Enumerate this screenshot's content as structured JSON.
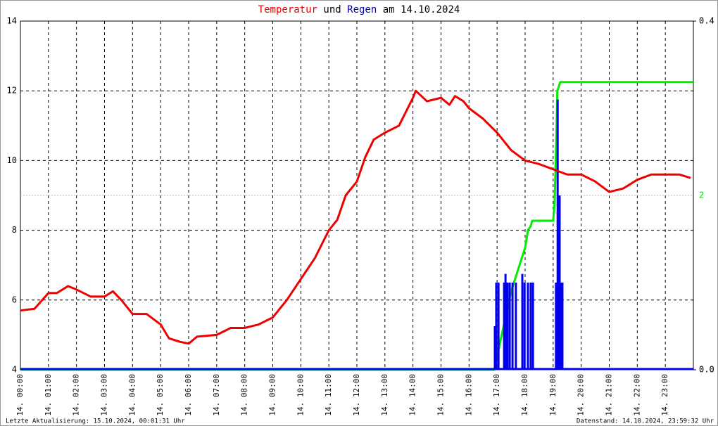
{
  "chart_data": {
    "type": "line",
    "title_connector": "und",
    "title_suffix": "am 14.10.2024",
    "footer_left": "Letzte Aktualisierung: 15.10.2024, 00:01:31 Uhr",
    "footer_right": "Datenstand: 14.10.2024, 23:59:32 Uhr",
    "xlim": [
      0,
      24
    ],
    "xticks": [
      {
        "value": 0,
        "label": "14. 00:00"
      },
      {
        "value": 1,
        "label": "14. 01:00"
      },
      {
        "value": 2,
        "label": "14. 02:00"
      },
      {
        "value": 3,
        "label": "14. 03:00"
      },
      {
        "value": 4,
        "label": "14. 04:00"
      },
      {
        "value": 5,
        "label": "14. 05:00"
      },
      {
        "value": 6,
        "label": "14. 06:00"
      },
      {
        "value": 7,
        "label": "14. 07:00"
      },
      {
        "value": 8,
        "label": "14. 08:00"
      },
      {
        "value": 9,
        "label": "14. 09:00"
      },
      {
        "value": 10,
        "label": "14. 10:00"
      },
      {
        "value": 11,
        "label": "14. 11:00"
      },
      {
        "value": 12,
        "label": "14. 12:00"
      },
      {
        "value": 13,
        "label": "14. 13:00"
      },
      {
        "value": 14,
        "label": "14. 14:00"
      },
      {
        "value": 15,
        "label": "14. 15:00"
      },
      {
        "value": 16,
        "label": "14. 16:00"
      },
      {
        "value": 17,
        "label": "14. 17:00"
      },
      {
        "value": 18,
        "label": "14. 18:00"
      },
      {
        "value": 19,
        "label": "14. 19:00"
      },
      {
        "value": 20,
        "label": "14. 20:00"
      },
      {
        "value": 21,
        "label": "14. 21:00"
      },
      {
        "value": 22,
        "label": "14. 22:00"
      },
      {
        "value": 23,
        "label": "14. 23:00"
      }
    ],
    "ylim": [
      4,
      14
    ],
    "yticks": [
      4,
      6,
      8,
      10,
      12,
      14
    ],
    "y2lim": [
      0,
      0.4
    ],
    "y2ticks": [
      {
        "value": 0,
        "label": "0.0"
      },
      {
        "value": 0.4,
        "label": "0.4"
      }
    ],
    "y3lim": [
      0,
      4
    ],
    "y3ticks": [
      2
    ],
    "y3color": "#00dd00",
    "grid": true,
    "series": [
      {
        "name": "Temperatur",
        "color": "#ee0000",
        "x": [
          0,
          0.5,
          1.0,
          1.3,
          1.7,
          2.0,
          2.5,
          3.0,
          3.3,
          3.6,
          4.0,
          4.5,
          5.0,
          5.3,
          5.7,
          6.0,
          6.3,
          7.0,
          7.5,
          8.0,
          8.5,
          9.0,
          9.5,
          10.0,
          10.5,
          11.0,
          11.3,
          11.6,
          12.0,
          12.3,
          12.6,
          13.0,
          13.5,
          14.0,
          14.1,
          14.5,
          15.0,
          15.3,
          15.5,
          15.8,
          16.0,
          16.5,
          17.0,
          17.5,
          18.0,
          18.5,
          19.0,
          19.5,
          20.0,
          20.5,
          21.0,
          21.5,
          22.0,
          22.5,
          23.0,
          23.5,
          23.9
        ],
        "values": [
          5.7,
          5.75,
          6.2,
          6.2,
          6.4,
          6.3,
          6.1,
          6.1,
          6.25,
          6.0,
          5.6,
          5.6,
          5.3,
          4.9,
          4.8,
          4.75,
          4.95,
          5.0,
          5.2,
          5.2,
          5.3,
          5.5,
          6.0,
          6.6,
          7.2,
          8.0,
          8.3,
          9.0,
          9.4,
          10.1,
          10.6,
          10.8,
          11.0,
          11.8,
          12.0,
          11.7,
          11.8,
          11.6,
          11.85,
          11.7,
          11.5,
          11.2,
          10.8,
          10.3,
          10.0,
          9.9,
          9.75,
          9.6,
          9.6,
          9.4,
          9.1,
          9.2,
          9.45,
          9.6,
          9.6,
          9.6,
          9.5
        ]
      },
      {
        "name": "Regen",
        "color": "#0000ee",
        "axis": "y2",
        "x": [
          16.92,
          16.97,
          17.05,
          17.25,
          17.3,
          17.37,
          17.45,
          17.55,
          17.67,
          17.9,
          17.98,
          18.1,
          18.2,
          18.28,
          19.1,
          19.16,
          19.23,
          19.28,
          19.33
        ],
        "values": [
          0.05,
          0.1,
          0.1,
          0.1,
          0.11,
          0.1,
          0.1,
          0.1,
          0.1,
          0.11,
          0.1,
          0.1,
          0.1,
          0.1,
          0.1,
          0.31,
          0.2,
          0.1,
          0.1
        ]
      },
      {
        "color": "#00ee00",
        "axis": "y3",
        "x": [
          0,
          16.9,
          17.5,
          17.6,
          17.7,
          17.9,
          18.0,
          18.1,
          18.2,
          18.25,
          19.0,
          19.05,
          19.1,
          19.15,
          19.25,
          24
        ],
        "values": [
          0,
          0,
          0.9,
          1.0,
          1.1,
          1.3,
          1.4,
          1.6,
          1.65,
          1.71,
          1.71,
          1.9,
          2.5,
          3.2,
          3.3,
          3.3
        ]
      }
    ]
  }
}
